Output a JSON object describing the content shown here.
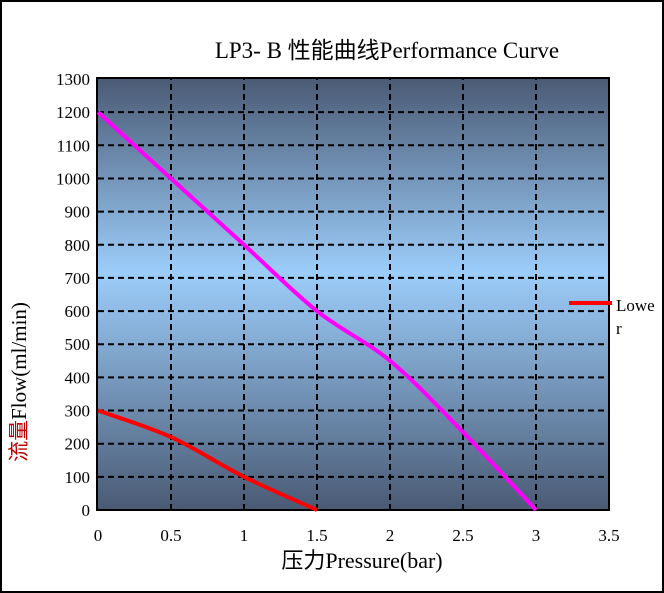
{
  "chart_data": {
    "type": "line",
    "title": "LP3- B  性能曲线Performance Curve",
    "xlabel": "压力Pressure(bar)",
    "ylabel_cn": "流量",
    "ylabel_en": "Flow(ml/min)",
    "xlim": [
      0,
      3.5
    ],
    "ylim": [
      0,
      1300
    ],
    "xticks": [
      "0",
      "0.5",
      "1",
      "1.5",
      "2",
      "2.5",
      "3",
      "3.5"
    ],
    "yticks": [
      "0",
      "100",
      "200",
      "300",
      "400",
      "500",
      "600",
      "700",
      "800",
      "900",
      "1000",
      "1100",
      "1200",
      "1300"
    ],
    "grid": true,
    "legend_placement": "right",
    "series": [
      {
        "color": "#ff00ff",
        "x": [
          0,
          0.5,
          1,
          1.5,
          2,
          2.5,
          3
        ],
        "y": [
          1200,
          1000,
          800,
          600,
          450,
          235,
          0
        ]
      },
      {
        "name": "Lower",
        "color": "#ff0000",
        "x": [
          0,
          0.5,
          1,
          1.5
        ],
        "y": [
          300,
          220,
          100,
          0
        ]
      }
    ]
  }
}
